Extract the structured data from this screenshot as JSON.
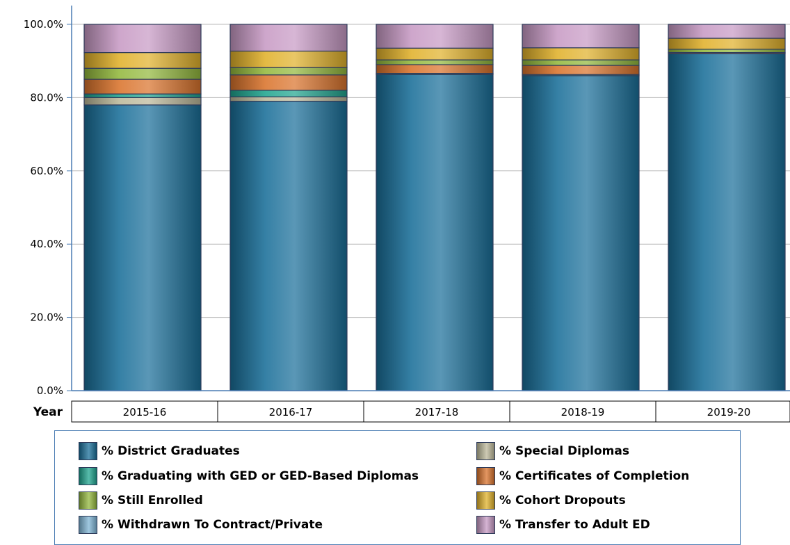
{
  "chart_data": {
    "type": "bar",
    "stacked": true,
    "xlabel": "Year",
    "ylim": [
      0,
      100
    ],
    "y_ticks": [
      "0.0%",
      "20.0%",
      "40.0%",
      "60.0%",
      "80.0%",
      "100.0%"
    ],
    "grid": true,
    "categories": [
      "2015-16",
      "2016-17",
      "2017-18",
      "2018-19",
      "2019-20"
    ],
    "series": [
      {
        "name": "% District Graduates",
        "color": "#1a6f99",
        "values": [
          78.0,
          79.0,
          86.3,
          86.0,
          92.0
        ]
      },
      {
        "name": "% Special Diplomas",
        "color": "#bcb89a",
        "values": [
          2.0,
          1.2,
          0.0,
          0.0,
          0.0
        ]
      },
      {
        "name": "% Graduating with GED or GED-Based Diplomas",
        "color": "#1fa58f",
        "values": [
          1.0,
          1.8,
          0.3,
          0.3,
          0.0
        ]
      },
      {
        "name": "% Certificates of Completion",
        "color": "#d9732c",
        "values": [
          4.0,
          4.2,
          2.4,
          2.5,
          0.3
        ]
      },
      {
        "name": "% Still Enrolled",
        "color": "#93b83d",
        "values": [
          3.0,
          2.0,
          1.3,
          1.5,
          0.9
        ]
      },
      {
        "name": "% Cohort Dropouts",
        "color": "#e0b12b",
        "values": [
          4.3,
          4.5,
          3.2,
          3.3,
          3.0
        ]
      },
      {
        "name": "% Withdrawn To Contract/Private",
        "color": "#7fb6d6",
        "values": [
          0.0,
          0.0,
          0.0,
          0.0,
          0.0
        ]
      },
      {
        "name": "% Transfer to Adult ED",
        "color": "#c79ac4",
        "values": [
          7.7,
          7.3,
          6.5,
          6.4,
          3.8
        ]
      }
    ]
  },
  "legend": {
    "items": [
      "% District Graduates",
      "% Special Diplomas",
      "% Graduating with GED or GED-Based Diplomas",
      "% Certificates of Completion",
      "% Still Enrolled",
      "% Cohort Dropouts",
      "% Withdrawn To Contract/Private",
      "% Transfer to Adult ED"
    ]
  }
}
